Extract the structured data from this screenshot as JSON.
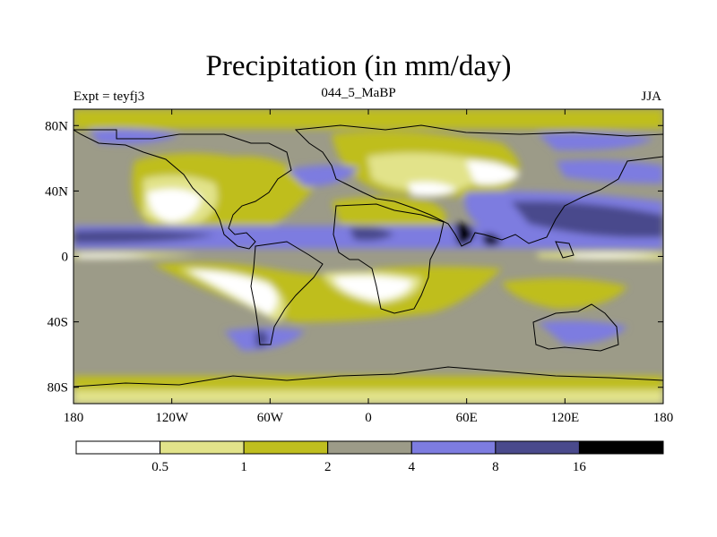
{
  "title": "Precipitation (in mm/day)",
  "subtitle_left": "Expt = teyfj3",
  "subtitle_center": "044_5_MaBP",
  "subtitle_right": "JJA",
  "colors": {
    "c0": "#ffffff",
    "c1": "#e2e38a",
    "c2": "#bfbe1f",
    "c3": "#9c9b88",
    "c4": "#7d7ce0",
    "c5": "#4a4a8c",
    "c6": "#000000"
  },
  "chart_data": {
    "type": "heatmap",
    "title": "Precipitation (in mm/day)",
    "variable_unit": "mm/day",
    "xlim": [
      -180,
      180
    ],
    "ylim": [
      -90,
      90
    ],
    "x_ticks": [
      {
        "value": -180,
        "label": "180"
      },
      {
        "value": -120,
        "label": "120W"
      },
      {
        "value": -60,
        "label": "60W"
      },
      {
        "value": 0,
        "label": "0"
      },
      {
        "value": 60,
        "label": "60E"
      },
      {
        "value": 120,
        "label": "120E"
      },
      {
        "value": 180,
        "label": "180"
      }
    ],
    "y_ticks": [
      {
        "value": 80,
        "label": "80N"
      },
      {
        "value": 40,
        "label": "40N"
      },
      {
        "value": 0,
        "label": "0"
      },
      {
        "value": -40,
        "label": "40S"
      },
      {
        "value": -80,
        "label": "80S"
      }
    ],
    "colorbar": {
      "levels": [
        "0.5",
        "1",
        "2",
        "4",
        "8",
        "16"
      ],
      "colors": [
        "#ffffff",
        "#e2e38a",
        "#bfbe1f",
        "#9c9b88",
        "#7d7ce0",
        "#4a4a8c",
        "#000000"
      ]
    }
  }
}
